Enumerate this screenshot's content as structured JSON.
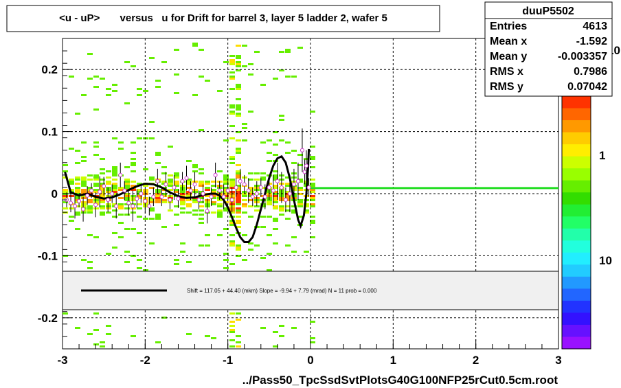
{
  "title": "<u - uP>       versus   u for Drift for barrel 3, layer 5 ladder 2, wafer 5",
  "stats": {
    "name": "duuP5502",
    "rows": [
      {
        "label": "Entries",
        "value": "4613"
      },
      {
        "label": "Mean x",
        "value": "-1.592"
      },
      {
        "label": "Mean y",
        "value": "-0.003357"
      },
      {
        "label": "RMS x",
        "value": "0.7986"
      },
      {
        "label": "RMS y",
        "value": "0.07042"
      }
    ]
  },
  "legend": {
    "text": "Shift =   117.05 + 44.40 (mkm) Slope =    -9.94 + 7.79 (mrad)  N = 11 prob = 0.000"
  },
  "xlabel": "../Pass50_TpcSsdSvtPlotsG40G100NFP25rCut0.5cm.root",
  "colors": {
    "fit_line": "#000000",
    "flat_line": "#22dd22",
    "profile_marker": "#cc33cc",
    "legend_bg": "#f0f0f0"
  },
  "palette_labels": [
    {
      "text": "10",
      "v": 10
    },
    {
      "text": "1",
      "v": 1
    },
    {
      "text": "10",
      "v": 0.1
    }
  ],
  "chart_data": {
    "type": "heatmap",
    "xlim": [
      -3,
      3
    ],
    "ylim": [
      -0.25,
      0.25
    ],
    "grid": true,
    "x_ticks": [
      {
        "v": -3,
        "label": "-3"
      },
      {
        "v": -2,
        "label": "-2"
      },
      {
        "v": -1,
        "label": "-1"
      },
      {
        "v": 0,
        "label": "0"
      },
      {
        "v": 1,
        "label": "1"
      },
      {
        "v": 2,
        "label": "2"
      },
      {
        "v": 3,
        "label": "3"
      }
    ],
    "y_ticks": [
      {
        "v": 0.2,
        "label": "0.2"
      },
      {
        "v": 0.1,
        "label": "0.1"
      },
      {
        "v": 0,
        "label": "0"
      },
      {
        "v": -0.1,
        "label": "-0.1"
      },
      {
        "v": -0.2,
        "label": "-0.2"
      }
    ],
    "fit_curve": [
      [
        -2.97,
        0.035
      ],
      [
        -2.9,
        0.002
      ],
      [
        -2.8,
        -0.003
      ],
      [
        -2.7,
        0.0
      ],
      [
        -2.6,
        -0.005
      ],
      [
        -2.5,
        -0.008
      ],
      [
        -2.4,
        -0.006
      ],
      [
        -2.3,
        -0.001
      ],
      [
        -2.2,
        0.006
      ],
      [
        -2.1,
        0.012
      ],
      [
        -2.0,
        0.016
      ],
      [
        -1.9,
        0.015
      ],
      [
        -1.8,
        0.01
      ],
      [
        -1.7,
        0.002
      ],
      [
        -1.6,
        -0.004
      ],
      [
        -1.5,
        -0.007
      ],
      [
        -1.4,
        -0.006
      ],
      [
        -1.3,
        -0.002
      ],
      [
        -1.2,
        0.0
      ],
      [
        -1.15,
        0.0
      ],
      [
        -1.1,
        -0.003
      ],
      [
        -1.05,
        -0.01
      ],
      [
        -1.0,
        -0.022
      ],
      [
        -0.95,
        -0.038
      ],
      [
        -0.9,
        -0.055
      ],
      [
        -0.85,
        -0.07
      ],
      [
        -0.8,
        -0.078
      ],
      [
        -0.75,
        -0.078
      ],
      [
        -0.7,
        -0.07
      ],
      [
        -0.65,
        -0.05
      ],
      [
        -0.6,
        -0.025
      ],
      [
        -0.55,
        0.0
      ],
      [
        -0.5,
        0.025
      ],
      [
        -0.45,
        0.045
      ],
      [
        -0.4,
        0.057
      ],
      [
        -0.35,
        0.06
      ],
      [
        -0.3,
        0.05
      ],
      [
        -0.25,
        0.025
      ],
      [
        -0.2,
        -0.01
      ],
      [
        -0.15,
        -0.042
      ],
      [
        -0.12,
        -0.052
      ],
      [
        -0.08,
        -0.035
      ],
      [
        -0.05,
        0.0
      ],
      [
        -0.03,
        0.04
      ],
      [
        -0.02,
        0.072
      ]
    ],
    "flat_line": {
      "x": [
        0.0,
        3.0
      ],
      "y": 0.009
    },
    "profile_points": [
      [
        -2.95,
        -0.01,
        0.012
      ],
      [
        -2.9,
        -0.015,
        0.015
      ],
      [
        -2.85,
        -0.02,
        0.02
      ],
      [
        -2.8,
        -0.012,
        0.01
      ],
      [
        -2.75,
        -0.025,
        0.02
      ],
      [
        -2.7,
        -0.003,
        0.015
      ],
      [
        -2.65,
        0.005,
        0.012
      ],
      [
        -2.6,
        -0.018,
        0.02
      ],
      [
        -2.55,
        0.003,
        0.025
      ],
      [
        -2.5,
        0.012,
        0.015
      ],
      [
        -2.45,
        -0.01,
        0.02
      ],
      [
        -2.4,
        0.0,
        0.015
      ],
      [
        -2.35,
        -0.02,
        0.02
      ],
      [
        -2.3,
        0.03,
        0.02
      ],
      [
        -2.25,
        0.005,
        0.015
      ],
      [
        -2.2,
        -0.015,
        0.02
      ],
      [
        -2.15,
        -0.02,
        0.025
      ],
      [
        -2.1,
        -0.008,
        0.015
      ],
      [
        -2.05,
        0.0,
        0.015
      ],
      [
        -2.0,
        -0.012,
        0.02
      ],
      [
        -1.95,
        -0.02,
        0.015
      ],
      [
        -1.9,
        -0.005,
        0.015
      ],
      [
        -1.85,
        0.02,
        0.02
      ],
      [
        -1.8,
        -0.005,
        0.015
      ],
      [
        -1.75,
        0.015,
        0.02
      ],
      [
        -1.7,
        -0.01,
        0.015
      ],
      [
        -1.65,
        0.01,
        0.02
      ],
      [
        -1.6,
        -0.008,
        0.015
      ],
      [
        -1.55,
        0.02,
        0.015
      ],
      [
        -1.5,
        0.025,
        0.02
      ],
      [
        -1.45,
        0.005,
        0.015
      ],
      [
        -1.4,
        0.015,
        0.02
      ],
      [
        -1.35,
        -0.01,
        0.015
      ],
      [
        -1.3,
        0.0,
        0.015
      ],
      [
        -1.25,
        -0.028,
        0.02
      ],
      [
        -1.2,
        -0.005,
        0.015
      ],
      [
        -1.15,
        0.03,
        0.02
      ],
      [
        -1.1,
        0.005,
        0.015
      ],
      [
        -1.05,
        -0.005,
        0.02
      ],
      [
        -1.0,
        0.005,
        0.015
      ],
      [
        -0.95,
        -0.01,
        0.02
      ],
      [
        -0.9,
        0.01,
        0.015
      ],
      [
        -0.85,
        0.02,
        0.02
      ],
      [
        -0.8,
        0.015,
        0.015
      ],
      [
        -0.75,
        0.005,
        0.02
      ],
      [
        -0.7,
        -0.005,
        0.015
      ],
      [
        -0.65,
        0.0,
        0.02
      ],
      [
        -0.6,
        0.01,
        0.015
      ],
      [
        -0.55,
        -0.005,
        0.02
      ],
      [
        -0.5,
        0.01,
        0.02
      ],
      [
        -0.45,
        0.005,
        0.025
      ],
      [
        -0.4,
        0.02,
        0.03
      ],
      [
        -0.35,
        0.01,
        0.025
      ],
      [
        -0.3,
        -0.01,
        0.02
      ],
      [
        -0.25,
        0.0,
        0.03
      ],
      [
        -0.2,
        0.015,
        0.025
      ],
      [
        -0.15,
        0.02,
        0.03
      ],
      [
        -0.1,
        0.07,
        0.035
      ],
      [
        -0.07,
        0.035,
        0.02
      ],
      [
        -0.05,
        0.045,
        0.025
      ],
      [
        -0.02,
        0.01,
        0.015
      ]
    ]
  }
}
